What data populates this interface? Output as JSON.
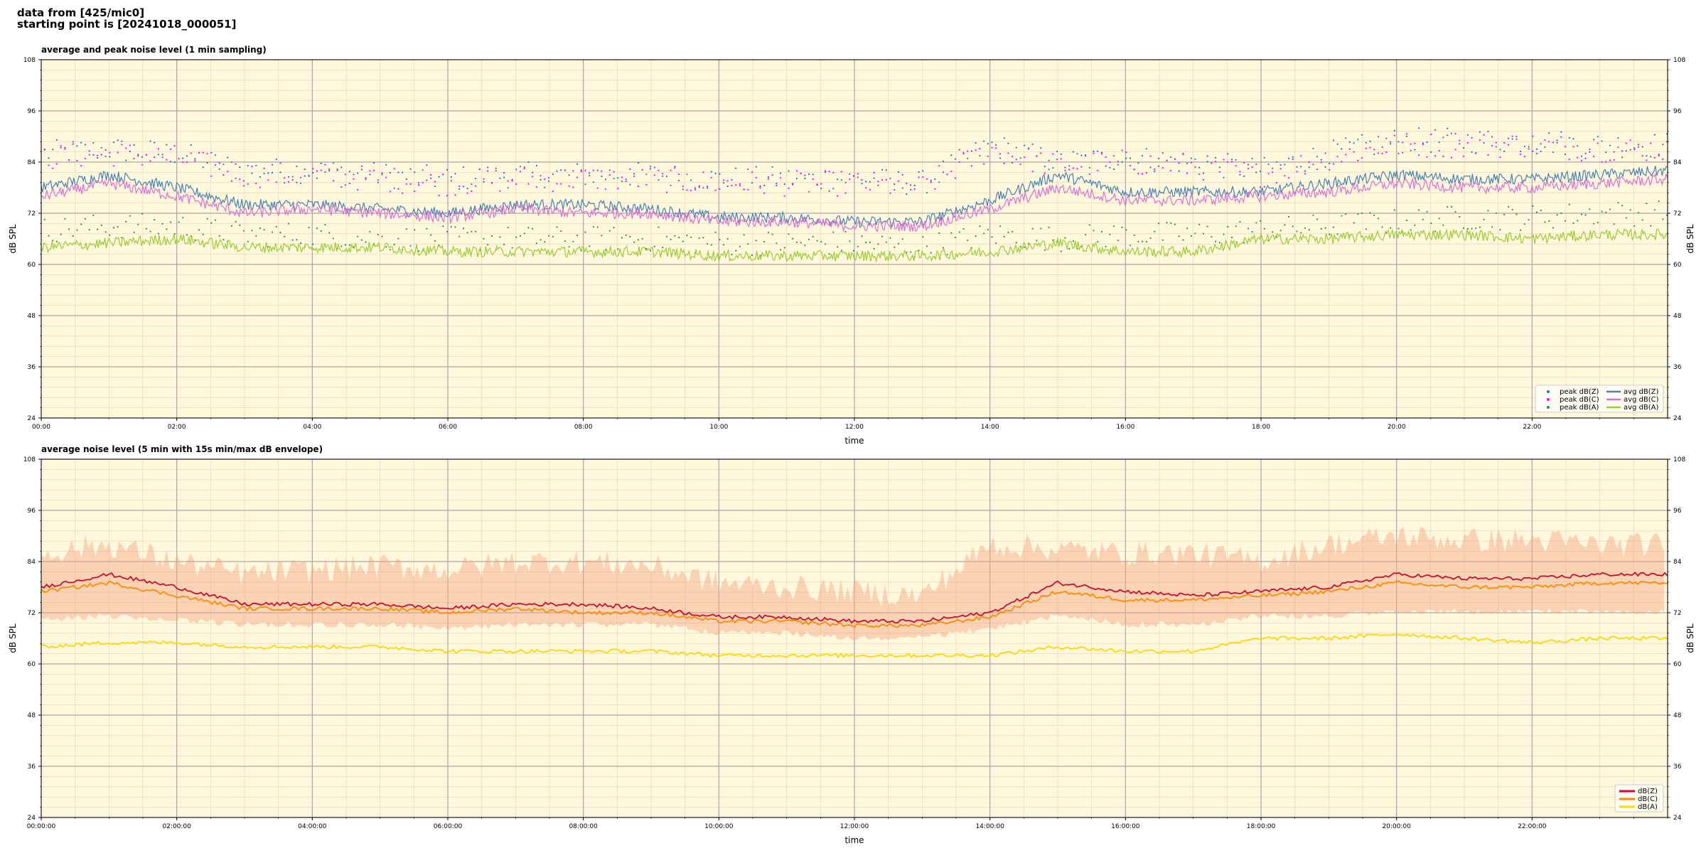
{
  "header": {
    "line1": "data from [425/mic0]",
    "line2": "starting point is [20241018_000051]"
  },
  "chart_data": [
    {
      "type": "line",
      "title": "average and peak noise level (1 min sampling)",
      "xlabel": "time",
      "ylabel": "dB SPL",
      "xlim": [
        "00:00",
        "24:00"
      ],
      "ylim": [
        24,
        108
      ],
      "yticks": [
        24,
        36,
        48,
        60,
        72,
        84,
        96,
        108
      ],
      "xticklabels": [
        "00:00",
        "02:00",
        "04:00",
        "06:00",
        "08:00",
        "10:00",
        "12:00",
        "14:00",
        "16:00",
        "18:00",
        "20:00",
        "22:00"
      ],
      "grid": true,
      "legend_position": "lower-right",
      "background": "#fff8dc",
      "sampling": "hourly estimate, 0..24",
      "series": [
        {
          "name": "peak dB(Z)",
          "style": "points",
          "color": "#1f77b4",
          "values": [
            86,
            87,
            86,
            82,
            82,
            81,
            80,
            81,
            81,
            81,
            80,
            80,
            80,
            79,
            88,
            84,
            85,
            84,
            82,
            86,
            89,
            89,
            89,
            88,
            88
          ]
        },
        {
          "name": "peak dB(C)",
          "style": "points",
          "color": "#ff00ff",
          "values": [
            85,
            86,
            85,
            81,
            81,
            80,
            79,
            80,
            80,
            80,
            79,
            79,
            79,
            78,
            87,
            83,
            84,
            83,
            81,
            85,
            88,
            88,
            88,
            87,
            87
          ]
        },
        {
          "name": "peak dB(A)",
          "style": "points",
          "color": "#2e8b57",
          "values": [
            68,
            69,
            69,
            67,
            67,
            66,
            66,
            66,
            66,
            66,
            65,
            65,
            65,
            64,
            67,
            66,
            67,
            67,
            68,
            69,
            70,
            71,
            71,
            72,
            72
          ]
        },
        {
          "name": "avg dB(Z)",
          "style": "line",
          "color": "#4682b4",
          "values": [
            78,
            81,
            78,
            74,
            74,
            73,
            72,
            74,
            74,
            73,
            71,
            71,
            70,
            70,
            75,
            81,
            77,
            77,
            77,
            79,
            81,
            80,
            80,
            81,
            82
          ]
        },
        {
          "name": "avg dB(C)",
          "style": "line",
          "color": "#da70d6",
          "values": [
            76,
            79,
            76,
            72,
            73,
            72,
            71,
            73,
            72,
            72,
            70,
            70,
            69,
            69,
            73,
            78,
            75,
            75,
            76,
            77,
            79,
            78,
            78,
            79,
            80
          ]
        },
        {
          "name": "avg dB(A)",
          "style": "line",
          "color": "#9acd32",
          "values": [
            64,
            65,
            66,
            64,
            64,
            64,
            63,
            63,
            63,
            63,
            62,
            62,
            62,
            62,
            63,
            65,
            63,
            63,
            66,
            66,
            67,
            67,
            66,
            67,
            67
          ]
        }
      ]
    },
    {
      "type": "line",
      "title": "average noise level (5 min with 15s min/max dB envelope)",
      "xlabel": "time",
      "ylabel": "dB SPL",
      "xlim": [
        "00:00:00",
        "24:00:00"
      ],
      "ylim": [
        24,
        108
      ],
      "yticks": [
        24,
        36,
        48,
        60,
        72,
        84,
        96,
        108
      ],
      "xticklabels": [
        "00:00:00",
        "02:00:00",
        "04:00:00",
        "06:00:00",
        "08:00:00",
        "10:00:00",
        "12:00:00",
        "14:00:00",
        "16:00:00",
        "18:00:00",
        "20:00:00",
        "22:00:00"
      ],
      "grid": true,
      "legend_position": "lower-right",
      "background": "#fff8dc",
      "envelope": {
        "color": "#f4a582",
        "min": [
          71,
          72,
          71,
          70,
          70,
          70,
          69,
          70,
          70,
          70,
          68,
          68,
          67,
          67,
          69,
          72,
          70,
          70,
          72,
          72,
          73,
          73,
          73,
          73,
          73
        ],
        "max": [
          86,
          88,
          84,
          81,
          82,
          83,
          82,
          84,
          84,
          83,
          79,
          78,
          77,
          76,
          88,
          87,
          86,
          86,
          84,
          88,
          90,
          89,
          89,
          88,
          88
        ]
      },
      "series": [
        {
          "name": "dB(Z)",
          "color": "#c8102e",
          "values": [
            78,
            81,
            78,
            74,
            74,
            74,
            73,
            74,
            74,
            73,
            71,
            71,
            70,
            70,
            72,
            79,
            77,
            76,
            77,
            78,
            81,
            80,
            80,
            81,
            81
          ]
        },
        {
          "name": "dB(C)",
          "color": "#ff8c00",
          "values": [
            77,
            79,
            76,
            73,
            73,
            73,
            72,
            73,
            72,
            72,
            70,
            70,
            69,
            69,
            71,
            77,
            75,
            75,
            76,
            77,
            79,
            78,
            78,
            79,
            79
          ]
        },
        {
          "name": "dB(A)",
          "color": "#ffd700",
          "values": [
            64,
            65,
            65,
            64,
            64,
            64,
            63,
            63,
            63,
            63,
            62,
            62,
            62,
            62,
            62,
            64,
            63,
            63,
            66,
            66,
            67,
            66,
            65,
            66,
            66
          ]
        }
      ]
    }
  ]
}
